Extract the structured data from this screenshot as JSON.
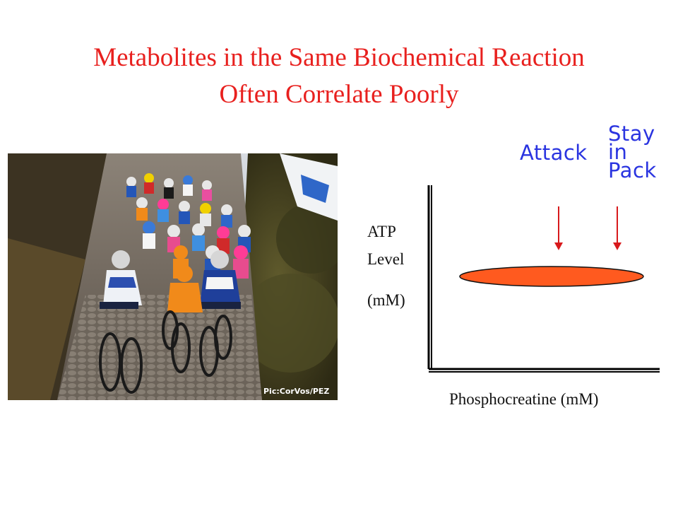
{
  "slide": {
    "title_line_1": "Metabolites in the Same Biochemical Reaction",
    "title_line_2": "Often Correlate Poorly"
  },
  "photo": {
    "credit": "Pic:CorVos/PEZ",
    "subject": "cycling-peloton-photo"
  },
  "diagram": {
    "y_axis_label_line_1": "ATP",
    "y_axis_label_line_2": "Level",
    "y_axis_label_line_3": "(mM)",
    "x_axis_label": "Phosphocreatine (mM)",
    "attack_label": "Attack",
    "stay_label_line_1": "Stay",
    "stay_label_line_2": "in",
    "stay_label_line_3": "Pack"
  },
  "colors": {
    "title": "#e8201e",
    "annotation": "#2a34e0",
    "arrow": "#d8191c",
    "data_ellipse": "#ff5a1f",
    "axis": "#000000"
  }
}
